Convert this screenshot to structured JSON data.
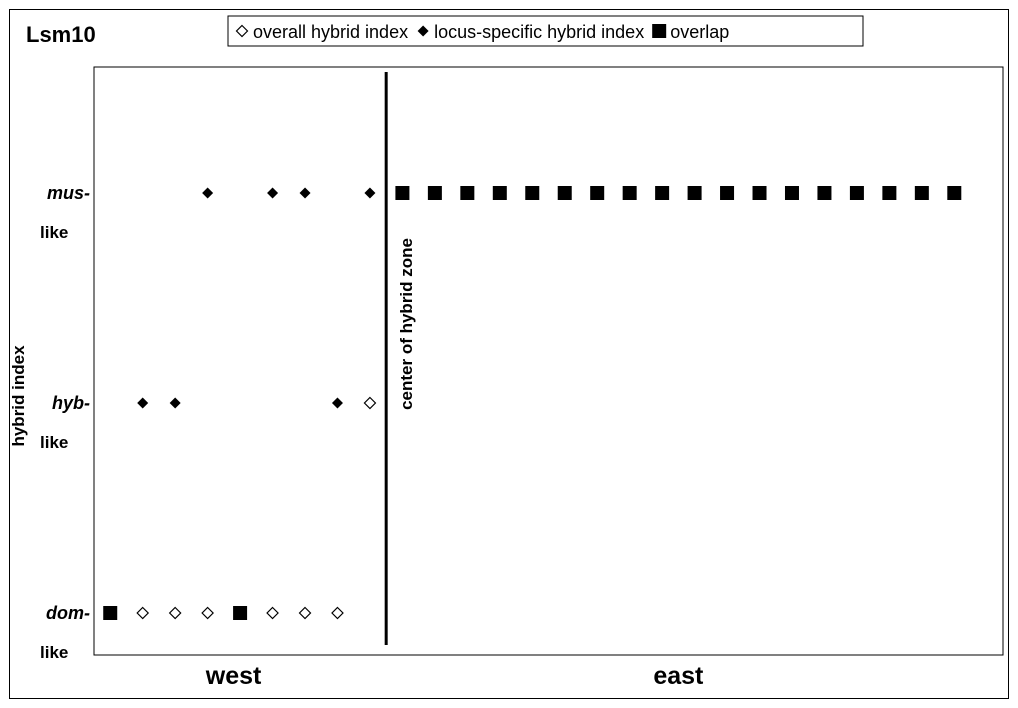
{
  "chart_data": {
    "type": "scatter",
    "title": "Lsm10",
    "ylabel": "hybrid index",
    "x_regions": [
      "west",
      "east"
    ],
    "y_levels": [
      {
        "key": "dom",
        "label": "dom-",
        "sublabel": "like"
      },
      {
        "key": "hyb",
        "label": "hyb-",
        "sublabel": "like"
      },
      {
        "key": "mus",
        "label": "mus-",
        "sublabel": "like"
      }
    ],
    "xlim": [
      0.5,
      28.5
    ],
    "ylim": [
      -0.2,
      2.6
    ],
    "center_line": {
      "x": 9.5,
      "label": "center of hybrid zone"
    },
    "legend": {
      "position": "top",
      "items": [
        {
          "marker": "open-diamond",
          "label": "overall hybrid index"
        },
        {
          "marker": "diamond",
          "label": "locus-specific hybrid index"
        },
        {
          "marker": "square",
          "label": "overlap"
        }
      ]
    },
    "series": [
      {
        "name": "overall hybrid index",
        "marker": "open-diamond",
        "points": [
          {
            "x": 2,
            "y": 0
          },
          {
            "x": 3,
            "y": 0
          },
          {
            "x": 4,
            "y": 0
          },
          {
            "x": 6,
            "y": 0
          },
          {
            "x": 7,
            "y": 0
          },
          {
            "x": 8,
            "y": 0
          },
          {
            "x": 9,
            "y": 1
          }
        ]
      },
      {
        "name": "locus-specific hybrid index",
        "marker": "diamond",
        "points": [
          {
            "x": 4,
            "y": 2
          },
          {
            "x": 6,
            "y": 2
          },
          {
            "x": 7,
            "y": 2
          },
          {
            "x": 9,
            "y": 2
          },
          {
            "x": 2,
            "y": 1
          },
          {
            "x": 3,
            "y": 1
          },
          {
            "x": 8,
            "y": 1
          }
        ]
      },
      {
        "name": "overlap",
        "marker": "square",
        "points": [
          {
            "x": 1,
            "y": 0
          },
          {
            "x": 5,
            "y": 0
          },
          {
            "x": 10,
            "y": 2
          },
          {
            "x": 11,
            "y": 2
          },
          {
            "x": 12,
            "y": 2
          },
          {
            "x": 13,
            "y": 2
          },
          {
            "x": 14,
            "y": 2
          },
          {
            "x": 15,
            "y": 2
          },
          {
            "x": 16,
            "y": 2
          },
          {
            "x": 17,
            "y": 2
          },
          {
            "x": 18,
            "y": 2
          },
          {
            "x": 19,
            "y": 2
          },
          {
            "x": 20,
            "y": 2
          },
          {
            "x": 21,
            "y": 2
          },
          {
            "x": 22,
            "y": 2
          },
          {
            "x": 23,
            "y": 2
          },
          {
            "x": 24,
            "y": 2
          },
          {
            "x": 25,
            "y": 2
          },
          {
            "x": 26,
            "y": 2
          },
          {
            "x": 27,
            "y": 2
          }
        ]
      }
    ],
    "colors": {
      "marker": "#000000",
      "background": "#ffffff"
    }
  }
}
